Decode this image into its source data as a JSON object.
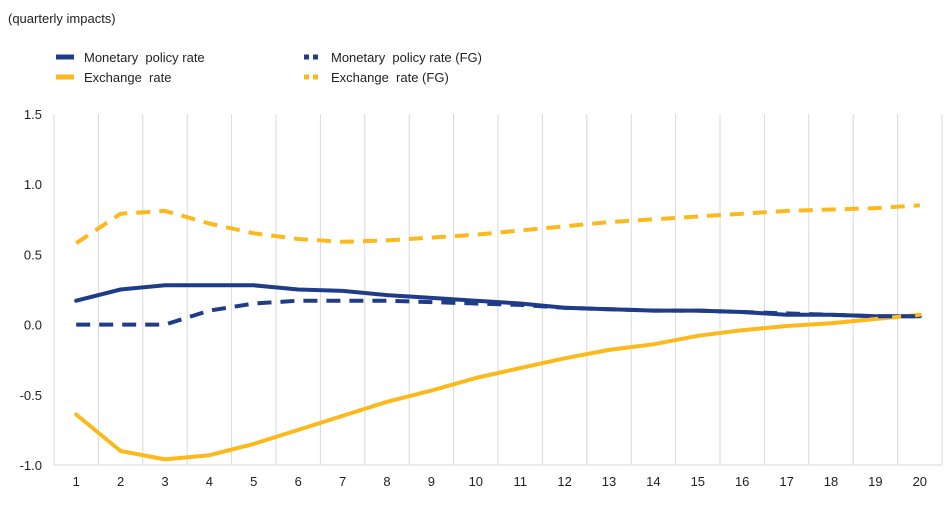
{
  "chart_data": {
    "type": "line",
    "subtitle": "(quarterly impacts)",
    "xlabel": "",
    "ylabel": "",
    "x": [
      1,
      2,
      3,
      4,
      5,
      6,
      7,
      8,
      9,
      10,
      11,
      12,
      13,
      14,
      15,
      16,
      17,
      18,
      19,
      20
    ],
    "ylim": [
      -1.0,
      1.5
    ],
    "yticks": [
      -1.0,
      -0.5,
      0.0,
      0.5,
      1.0,
      1.5
    ],
    "ytick_labels": [
      "-1.0",
      "-0.5",
      "0.0",
      "0.5",
      "1.0",
      "1.5"
    ],
    "grid": "vertical",
    "legend_position": "top-left",
    "series": [
      {
        "name": "Monetary  policy rate",
        "color": "#1f3c88",
        "style": "solid",
        "values": [
          0.17,
          0.25,
          0.28,
          0.28,
          0.28,
          0.25,
          0.24,
          0.21,
          0.19,
          0.17,
          0.15,
          0.12,
          0.11,
          0.1,
          0.1,
          0.09,
          0.07,
          0.07,
          0.06,
          0.06
        ]
      },
      {
        "name": "Exchange  rate",
        "color": "#fbb91b",
        "style": "solid",
        "values": [
          -0.64,
          -0.9,
          -0.96,
          -0.93,
          -0.85,
          -0.75,
          -0.65,
          -0.55,
          -0.47,
          -0.38,
          -0.31,
          -0.24,
          -0.18,
          -0.14,
          -0.08,
          -0.04,
          -0.01,
          0.01,
          0.04,
          0.07
        ]
      },
      {
        "name": "Monetary  policy rate (FG)",
        "color": "#1f3c88",
        "style": "dashed",
        "values": [
          0.0,
          0.0,
          0.0,
          0.1,
          0.15,
          0.17,
          0.17,
          0.17,
          0.16,
          0.15,
          0.14,
          0.12,
          0.11,
          0.1,
          0.1,
          0.09,
          0.08,
          0.07,
          0.06,
          0.06
        ]
      },
      {
        "name": "Exchange  rate (FG)",
        "color": "#fbb91b",
        "style": "dashed",
        "values": [
          0.58,
          0.79,
          0.81,
          0.72,
          0.65,
          0.61,
          0.59,
          0.6,
          0.62,
          0.64,
          0.67,
          0.7,
          0.73,
          0.75,
          0.77,
          0.79,
          0.81,
          0.82,
          0.83,
          0.85
        ]
      }
    ]
  }
}
